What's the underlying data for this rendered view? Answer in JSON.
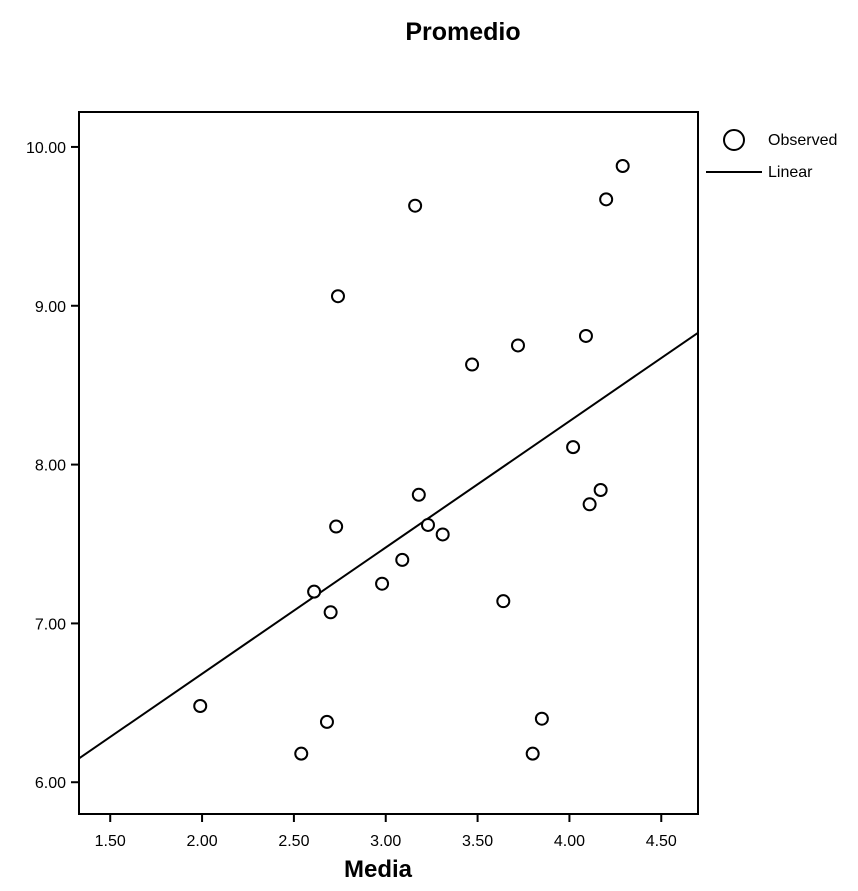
{
  "chart_data": {
    "type": "scatter",
    "title": "Promedio",
    "xlabel": "Media",
    "ylabel": "",
    "xlim": [
      1.33,
      4.7
    ],
    "ylim": [
      5.8,
      10.22
    ],
    "x_ticks": [
      "1.50",
      "2.00",
      "2.50",
      "3.00",
      "3.50",
      "4.00",
      "4.50"
    ],
    "y_ticks": [
      "6.00",
      "7.00",
      "8.00",
      "9.00",
      "10.00"
    ],
    "grid": false,
    "legend": {
      "position": "top-right",
      "entries": [
        {
          "label": "Observed",
          "symbol": "circle"
        },
        {
          "label": "Linear",
          "symbol": "line"
        }
      ]
    },
    "series": [
      {
        "name": "Observed",
        "points": [
          {
            "x": 1.99,
            "y": 6.48
          },
          {
            "x": 2.54,
            "y": 6.18
          },
          {
            "x": 2.61,
            "y": 7.2
          },
          {
            "x": 2.68,
            "y": 6.38
          },
          {
            "x": 2.7,
            "y": 7.07
          },
          {
            "x": 2.73,
            "y": 7.61
          },
          {
            "x": 2.74,
            "y": 9.06
          },
          {
            "x": 2.98,
            "y": 7.25
          },
          {
            "x": 3.09,
            "y": 7.4
          },
          {
            "x": 3.16,
            "y": 9.63
          },
          {
            "x": 3.18,
            "y": 7.81
          },
          {
            "x": 3.23,
            "y": 7.62
          },
          {
            "x": 3.31,
            "y": 7.56
          },
          {
            "x": 3.47,
            "y": 8.63
          },
          {
            "x": 3.64,
            "y": 7.14
          },
          {
            "x": 3.72,
            "y": 8.75
          },
          {
            "x": 3.8,
            "y": 6.18
          },
          {
            "x": 3.85,
            "y": 6.4
          },
          {
            "x": 4.02,
            "y": 8.11
          },
          {
            "x": 4.09,
            "y": 8.81
          },
          {
            "x": 4.11,
            "y": 7.75
          },
          {
            "x": 4.17,
            "y": 7.84
          },
          {
            "x": 4.2,
            "y": 9.67
          },
          {
            "x": 4.29,
            "y": 9.88
          }
        ]
      },
      {
        "name": "Linear",
        "line": [
          {
            "x": 1.33,
            "y": 6.15
          },
          {
            "x": 4.7,
            "y": 8.83
          }
        ]
      }
    ]
  }
}
